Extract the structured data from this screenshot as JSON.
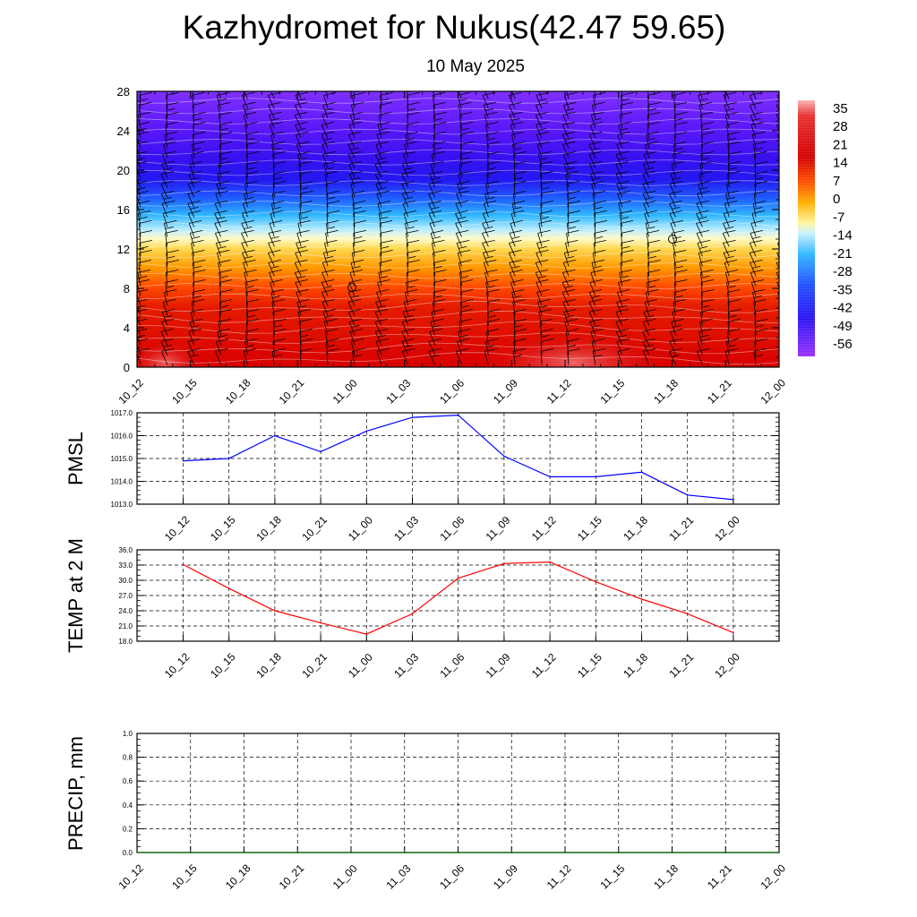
{
  "header": {
    "title": "Kazhydromet for Nukus(42.47 59.65)",
    "subtitle": "10 May 2025"
  },
  "time_labels": [
    "10_12",
    "10_15",
    "10_18",
    "10_21",
    "11_00",
    "11_03",
    "11_06",
    "11_09",
    "11_12",
    "11_15",
    "11_18",
    "11_21",
    "12_00"
  ],
  "colorbar": {
    "labels": [
      "35",
      "28",
      "21",
      "14",
      "7",
      "0",
      "-7",
      "-14",
      "-21",
      "-28",
      "-35",
      "-42",
      "-49",
      "-56"
    ]
  },
  "chart_data": [
    {
      "type": "heatmap",
      "title": "",
      "xlabel": "",
      "ylabel": "",
      "x": [
        "10_12",
        "10_15",
        "10_18",
        "10_21",
        "11_00",
        "11_03",
        "11_06",
        "11_09",
        "11_12",
        "11_15",
        "11_18",
        "11_21",
        "12_00"
      ],
      "yticks": [
        "0",
        "4",
        "8",
        "12",
        "16",
        "20",
        "24",
        "28"
      ],
      "ylim": [
        0,
        28
      ],
      "color_scale": {
        "min": -56,
        "max": 35
      },
      "level_temperature_profile": {
        "levels": [
          0,
          2,
          4,
          6,
          8,
          10,
          12,
          13,
          14,
          16,
          18,
          20,
          24,
          28
        ],
        "values": [
          32,
          25,
          22,
          20,
          13,
          9,
          3,
          -6,
          -15,
          -32,
          -52,
          -58,
          -55,
          -51
        ]
      },
      "overlay": "wind barbs"
    },
    {
      "type": "line",
      "ylabel": "PMSL",
      "ylim": [
        1013.0,
        1017.0
      ],
      "yticks": [
        "1013.0",
        "1014.0",
        "1015.0",
        "1016.0",
        "1017.0"
      ],
      "x": [
        "10_12",
        "10_15",
        "10_18",
        "10_21",
        "11_00",
        "11_03",
        "11_06",
        "11_09",
        "11_12",
        "11_15",
        "11_18",
        "11_21",
        "12_00"
      ],
      "series": [
        {
          "values": [
            1014.9,
            1015.0,
            1016.0,
            1015.3,
            1016.2,
            1016.8,
            1016.9,
            1015.1,
            1014.2,
            1014.2,
            1014.4,
            1013.4,
            1013.2
          ]
        }
      ],
      "color": "#0000ff",
      "grid": true
    },
    {
      "type": "line",
      "ylabel": "TEMP at 2 M",
      "ylim": [
        18.0,
        36.0
      ],
      "yticks": [
        "18.0",
        "21.0",
        "24.0",
        "27.0",
        "30.0",
        "33.0",
        "36.0"
      ],
      "x": [
        "10_12",
        "10_15",
        "10_18",
        "10_21",
        "11_00",
        "11_03",
        "11_06",
        "11_09",
        "11_12",
        "11_15",
        "11_18",
        "11_21",
        "12_00"
      ],
      "series": [
        {
          "values": [
            33.1,
            28.4,
            24.0,
            21.6,
            19.4,
            23.4,
            30.4,
            33.3,
            33.6,
            29.7,
            26.3,
            23.4,
            19.7
          ]
        }
      ],
      "color": "#ff0000",
      "grid": true
    },
    {
      "type": "line",
      "ylabel": "PRECIP, mm",
      "ylim": [
        0.0,
        1.0
      ],
      "yticks": [
        "0.0",
        "0.2",
        "0.4",
        "0.6",
        "0.8",
        "1.0"
      ],
      "x": [
        "10_12",
        "10_15",
        "10_18",
        "10_21",
        "11_00",
        "11_03",
        "11_06",
        "11_09",
        "11_12",
        "11_15",
        "11_18",
        "11_21",
        "12_00"
      ],
      "series": [
        {
          "values": [
            0,
            0,
            0,
            0,
            0,
            0,
            0,
            0,
            0,
            0,
            0,
            0,
            0
          ]
        }
      ],
      "color": "#006400",
      "grid": true
    }
  ]
}
